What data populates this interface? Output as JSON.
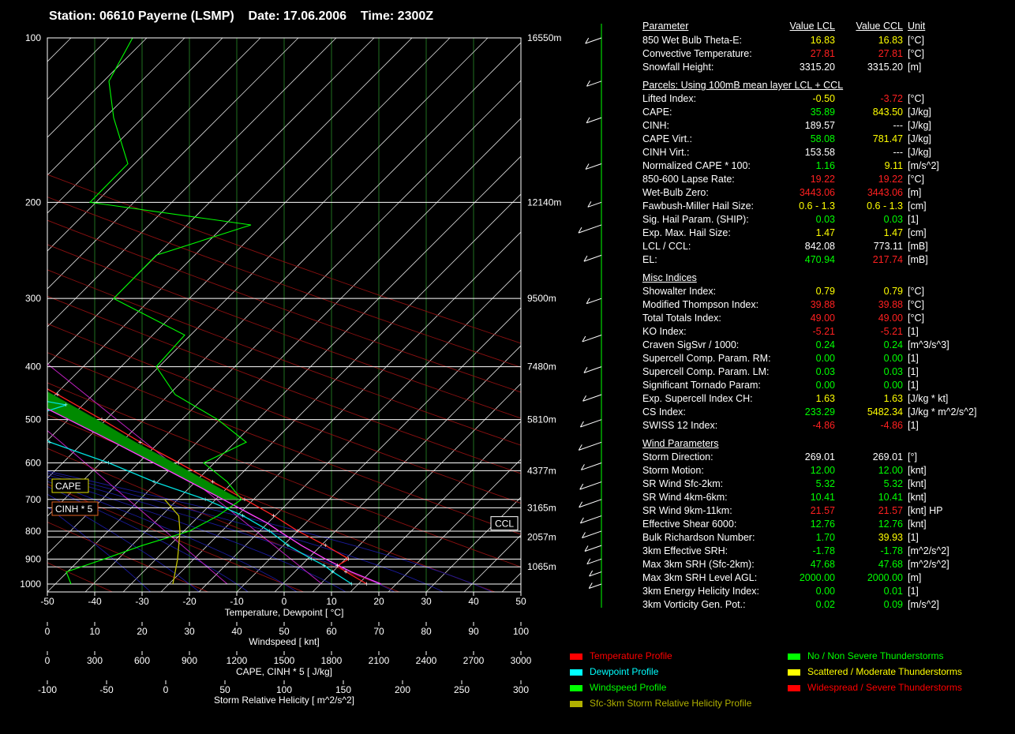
{
  "title": "Station: 06610 Payerne (LSMP)    Date: 17.06.2006    Time: 2300Z",
  "chart_data": {
    "type": "skew-t",
    "pressure_levels": [
      "100",
      "200",
      "300",
      "400",
      "500",
      "600",
      "700",
      "800",
      "900",
      "1000"
    ],
    "height_labels": [
      {
        "p": 100,
        "label": "16550m"
      },
      {
        "p": 200,
        "label": "12140m"
      },
      {
        "p": 300,
        "label": "9500m"
      },
      {
        "p": 400,
        "label": "7480m"
      },
      {
        "p": 500,
        "label": "5810m"
      },
      {
        "p": 620,
        "label": "4377m"
      },
      {
        "p": 725,
        "label": "3165m"
      },
      {
        "p": 820,
        "label": "2057m"
      },
      {
        "p": 930,
        "label": "1065m"
      }
    ],
    "ccl_label": "CCL",
    "ccl_pressure": 773,
    "x_axes": [
      {
        "ticks": [
          "-50",
          "-40",
          "-30",
          "-20",
          "-10",
          "0",
          "10",
          "20",
          "30",
          "40",
          "50"
        ],
        "label": "Temperature, Dewpoint  [ °C]"
      },
      {
        "ticks": [
          "0",
          "10",
          "20",
          "30",
          "40",
          "50",
          "60",
          "70",
          "80",
          "90",
          "100"
        ],
        "label": "Windspeed  [ knt]"
      },
      {
        "ticks": [
          "0",
          "300",
          "600",
          "900",
          "1200",
          "1500",
          "1800",
          "2100",
          "2400",
          "2700",
          "3000"
        ],
        "label": "CAPE, CINH * 5  [ J/kg]"
      },
      {
        "ticks": [
          "-100",
          "-50",
          "0",
          "50",
          "100",
          "150",
          "200",
          "250",
          "300"
        ],
        "label": "Storm Relative Helicity  [ m^2/s^2]"
      }
    ],
    "temp_range": [
      -50,
      50
    ],
    "pressure_range": [
      100,
      1050
    ],
    "log_pressure": true,
    "cape_label": "CAPE",
    "cinh_label": "CINH * 5",
    "temperature": [
      [
        1000,
        17.5
      ],
      [
        950,
        15.4
      ],
      [
        925,
        14.8
      ],
      [
        900,
        18.4
      ],
      [
        850,
        16.1
      ],
      [
        800,
        13.0
      ],
      [
        750,
        10.8
      ],
      [
        700,
        7.8
      ],
      [
        650,
        4.4
      ],
      [
        600,
        0.8
      ],
      [
        550,
        -3.4
      ],
      [
        500,
        -7.2
      ],
      [
        450,
        -11.8
      ],
      [
        400,
        -17.3
      ],
      [
        350,
        -23.5
      ],
      [
        300,
        -31.5
      ],
      [
        250,
        -40.5
      ],
      [
        220,
        -46.5
      ],
      [
        200,
        -51.0
      ],
      [
        180,
        -55.0
      ],
      [
        150,
        -56.5
      ],
      [
        130,
        -57.5
      ],
      [
        110,
        -60.0
      ],
      [
        100,
        -62.0
      ]
    ],
    "dewpoint": [
      [
        1000,
        14.3
      ],
      [
        950,
        12.6
      ],
      [
        925,
        12.0
      ],
      [
        900,
        10.6
      ],
      [
        850,
        8.2
      ],
      [
        800,
        7.0
      ],
      [
        750,
        4.3
      ],
      [
        700,
        -0.5
      ],
      [
        650,
        -8.0
      ],
      [
        600,
        -14.0
      ],
      [
        550,
        -22.5
      ],
      [
        500,
        -24.5
      ],
      [
        470,
        -12.0
      ],
      [
        450,
        -22.0
      ],
      [
        400,
        -30.5
      ],
      [
        350,
        -36.0
      ],
      [
        300,
        -42.0
      ],
      [
        250,
        -52.0
      ],
      [
        220,
        -58.0
      ],
      [
        200,
        -64.0
      ]
    ],
    "parcel": [
      [
        1000,
        20.5
      ],
      [
        950,
        16.5
      ],
      [
        900,
        13.5
      ],
      [
        850,
        11.0
      ],
      [
        800,
        9.0
      ],
      [
        773,
        8.0
      ],
      [
        750,
        6.5
      ],
      [
        700,
        3.2
      ],
      [
        650,
        -0.5
      ],
      [
        600,
        -4.5
      ],
      [
        550,
        -9.0
      ],
      [
        500,
        -14.2
      ],
      [
        450,
        -20.0
      ],
      [
        400,
        -26.5
      ],
      [
        350,
        -34.5
      ],
      [
        300,
        -43.5
      ],
      [
        250,
        -54.0
      ],
      [
        218,
        -62.0
      ]
    ],
    "windspeed_knt": [
      [
        1000,
        5
      ],
      [
        950,
        4
      ],
      [
        900,
        12
      ],
      [
        850,
        20
      ],
      [
        800,
        30
      ],
      [
        750,
        36
      ],
      [
        700,
        41
      ],
      [
        650,
        38
      ],
      [
        600,
        33
      ],
      [
        550,
        42
      ],
      [
        500,
        36
      ],
      [
        450,
        27
      ],
      [
        400,
        23
      ],
      [
        350,
        29
      ],
      [
        300,
        14
      ],
      [
        250,
        23
      ],
      [
        220,
        43
      ],
      [
        200,
        9
      ],
      [
        170,
        17
      ],
      [
        140,
        14
      ],
      [
        120,
        13
      ],
      [
        100,
        18
      ]
    ],
    "srh_profile": [
      [
        1000,
        6
      ],
      [
        950,
        8
      ],
      [
        900,
        10
      ],
      [
        850,
        11
      ],
      [
        800,
        12
      ],
      [
        750,
        11
      ],
      [
        700,
        -1
      ]
    ]
  },
  "table": {
    "header": {
      "param": "Parameter",
      "lcl": "Value LCL",
      "ccl": "Value CCL",
      "unit": "Unit"
    },
    "sections": [
      {
        "title": "",
        "rows": [
          {
            "n": "850 Wet Bulb Theta-E:",
            "l": "16.83",
            "c": "16.83",
            "u": "[°C]",
            "lc": "#ffff00",
            "cc": "#ffff00"
          },
          {
            "n": "Convective Temperature:",
            "l": "27.81",
            "c": "27.81",
            "u": "[°C]",
            "lc": "#ff2020",
            "cc": "#ff2020"
          },
          {
            "n": "Snowfall Height:",
            "l": "3315.20",
            "c": "3315.20",
            "u": "[m]",
            "lc": "#ffffff",
            "cc": "#ffffff"
          }
        ]
      },
      {
        "title": "Parcels: Using 100mB mean layer LCL + CCL",
        "rows": [
          {
            "n": "Lifted Index:",
            "l": "-0.50",
            "c": "-3.72",
            "u": "[°C]",
            "lc": "#ffff00",
            "cc": "#ff2020"
          },
          {
            "n": "CAPE:",
            "l": "35.89",
            "c": "843.50",
            "u": "[J/kg]",
            "lc": "#00ff00",
            "cc": "#ffff00"
          },
          {
            "n": "CINH:",
            "l": "189.57",
            "c": "---",
            "u": "[J/kg]",
            "lc": "#ffffff",
            "cc": "#ffffff"
          },
          {
            "n": "CAPE Virt.:",
            "l": "58.08",
            "c": "781.47",
            "u": "[J/kg]",
            "lc": "#00ff00",
            "cc": "#ffff00"
          },
          {
            "n": "CINH Virt.:",
            "l": "153.58",
            "c": "---",
            "u": "[J/kg]",
            "lc": "#ffffff",
            "cc": "#ffffff"
          },
          {
            "n": "Normalized CAPE * 100:",
            "l": "1.16",
            "c": "9.11",
            "u": "[m/s^2]",
            "lc": "#00ff00",
            "cc": "#ffff00"
          },
          {
            "n": "850-600 Lapse Rate:",
            "l": "19.22",
            "c": "19.22",
            "u": "[°C]",
            "lc": "#ff2020",
            "cc": "#ff2020"
          },
          {
            "n": "Wet-Bulb Zero:",
            "l": "3443.06",
            "c": "3443.06",
            "u": "[m]",
            "lc": "#ff2020",
            "cc": "#ff2020"
          },
          {
            "n": "Fawbush-Miller Hail Size:",
            "l": "0.6 - 1.3",
            "c": "0.6 - 1.3",
            "u": "[cm]",
            "lc": "#ffff00",
            "cc": "#ffff00"
          },
          {
            "n": "Sig. Hail Param. (SHIP):",
            "l": "0.03",
            "c": "0.03",
            "u": "[1]",
            "lc": "#00ff00",
            "cc": "#00ff00"
          },
          {
            "n": "Exp. Max. Hail Size:",
            "l": "1.47",
            "c": "1.47",
            "u": "[cm]",
            "lc": "#ffff00",
            "cc": "#ffff00"
          },
          {
            "n": "LCL / CCL:",
            "l": "842.08",
            "c": "773.11",
            "u": "[mB]",
            "lc": "#ffffff",
            "cc": "#ffffff"
          },
          {
            "n": "EL:",
            "l": "470.94",
            "c": "217.74",
            "u": "[mB]",
            "lc": "#00ff00",
            "cc": "#ff2020"
          }
        ]
      },
      {
        "title": "Misc Indices",
        "rows": [
          {
            "n": "Showalter Index:",
            "l": "0.79",
            "c": "0.79",
            "u": "[°C]",
            "lc": "#ffff00",
            "cc": "#ffff00"
          },
          {
            "n": "Modified Thompson Index:",
            "l": "39.88",
            "c": "39.88",
            "u": "[°C]",
            "lc": "#ff2020",
            "cc": "#ff2020"
          },
          {
            "n": "Total Totals Index:",
            "l": "49.00",
            "c": "49.00",
            "u": "[°C]",
            "lc": "#ff2020",
            "cc": "#ff2020"
          },
          {
            "n": "KO Index:",
            "l": "-5.21",
            "c": "-5.21",
            "u": "[1]",
            "lc": "#ff2020",
            "cc": "#ff2020"
          },
          {
            "n": "Craven SigSvr / 1000:",
            "l": "0.24",
            "c": "0.24",
            "u": "[m^3/s^3]",
            "lc": "#00ff00",
            "cc": "#00ff00"
          },
          {
            "n": "Supercell Comp. Param. RM:",
            "l": "0.00",
            "c": "0.00",
            "u": "[1]",
            "lc": "#00ff00",
            "cc": "#00ff00"
          },
          {
            "n": "Supercell Comp. Param. LM:",
            "l": "0.03",
            "c": "0.03",
            "u": "[1]",
            "lc": "#00ff00",
            "cc": "#00ff00"
          },
          {
            "n": "Significant Tornado Param:",
            "l": "0.00",
            "c": "0.00",
            "u": "[1]",
            "lc": "#00ff00",
            "cc": "#00ff00"
          },
          {
            "n": "Exp. Supercell Index CH:",
            "l": "1.63",
            "c": "1.63",
            "u": "[J/kg * kt]",
            "lc": "#ffff00",
            "cc": "#ffff00"
          },
          {
            "n": "CS Index:",
            "l": "233.29",
            "c": "5482.34",
            "u": "[J/kg * m^2/s^2]",
            "lc": "#00ff00",
            "cc": "#ffff00"
          },
          {
            "n": "SWISS 12 Index:",
            "l": "-4.86",
            "c": "-4.86",
            "u": "[1]",
            "lc": "#ff2020",
            "cc": "#ff2020"
          }
        ]
      },
      {
        "title": "Wind Parameters",
        "rows": [
          {
            "n": "Storm Direction:",
            "l": "269.01",
            "c": "269.01",
            "u": "[°]",
            "lc": "#ffffff",
            "cc": "#ffffff"
          },
          {
            "n": "Storm Motion:",
            "l": "12.00",
            "c": "12.00",
            "u": "[knt]",
            "lc": "#00ff00",
            "cc": "#00ff00"
          },
          {
            "n": "SR Wind Sfc-2km:",
            "l": "5.32",
            "c": "5.32",
            "u": "[knt]",
            "lc": "#00ff00",
            "cc": "#00ff00"
          },
          {
            "n": "SR Wind 4km-6km:",
            "l": "10.41",
            "c": "10.41",
            "u": "[knt]",
            "lc": "#00ff00",
            "cc": "#00ff00"
          },
          {
            "n": "SR Wind 9km-11km:",
            "l": "21.57",
            "c": "21.57",
            "u": "[knt] HP",
            "lc": "#ff2020",
            "cc": "#ff2020"
          },
          {
            "n": "Effective Shear 6000:",
            "l": "12.76",
            "c": "12.76",
            "u": "[knt]",
            "lc": "#00ff00",
            "cc": "#00ff00"
          },
          {
            "n": "Bulk Richardson Number:",
            "l": "1.70",
            "c": "39.93",
            "u": "[1]",
            "lc": "#00ff00",
            "cc": "#ffff00"
          },
          {
            "n": "3km Effective SRH:",
            "l": "-1.78",
            "c": "-1.78",
            "u": "[m^2/s^2]",
            "lc": "#00ff00",
            "cc": "#00ff00"
          },
          {
            "n": "Max 3km SRH (Sfc-2km):",
            "l": "47.68",
            "c": "47.68",
            "u": "[m^2/s^2]",
            "lc": "#00ff00",
            "cc": "#00ff00"
          },
          {
            "n": "Max 3km SRH Level AGL:",
            "l": "2000.00",
            "c": "2000.00",
            "u": "[m]",
            "lc": "#00ff00",
            "cc": "#00ff00"
          },
          {
            "n": "3km Energy Helicity Index:",
            "l": "0.00",
            "c": "0.01",
            "u": "[1]",
            "lc": "#00ff00",
            "cc": "#00ff00"
          },
          {
            "n": "3km Vorticity Gen. Pot.:",
            "l": "0.02",
            "c": "0.09",
            "u": "[m/s^2]",
            "lc": "#00ff00",
            "cc": "#00ff00"
          }
        ]
      }
    ]
  },
  "legend_left": [
    {
      "label": "Temperature Profile",
      "color": "#ff0000"
    },
    {
      "label": "Dewpoint Profile",
      "color": "#00ffff"
    },
    {
      "label": "Windspeed Profile",
      "color": "#00ff00"
    },
    {
      "label": "Sfc-3km Storm Relative Helicity Profile",
      "color": "#b0b000"
    }
  ],
  "legend_right": [
    {
      "label": "No / Non Severe Thunderstorms",
      "color": "#00ff00"
    },
    {
      "label": "Scattered / Moderate Thunderstorms",
      "color": "#ffff00"
    },
    {
      "label": "Widespread / Severe Thunderstorms",
      "color": "#ff0000"
    }
  ]
}
